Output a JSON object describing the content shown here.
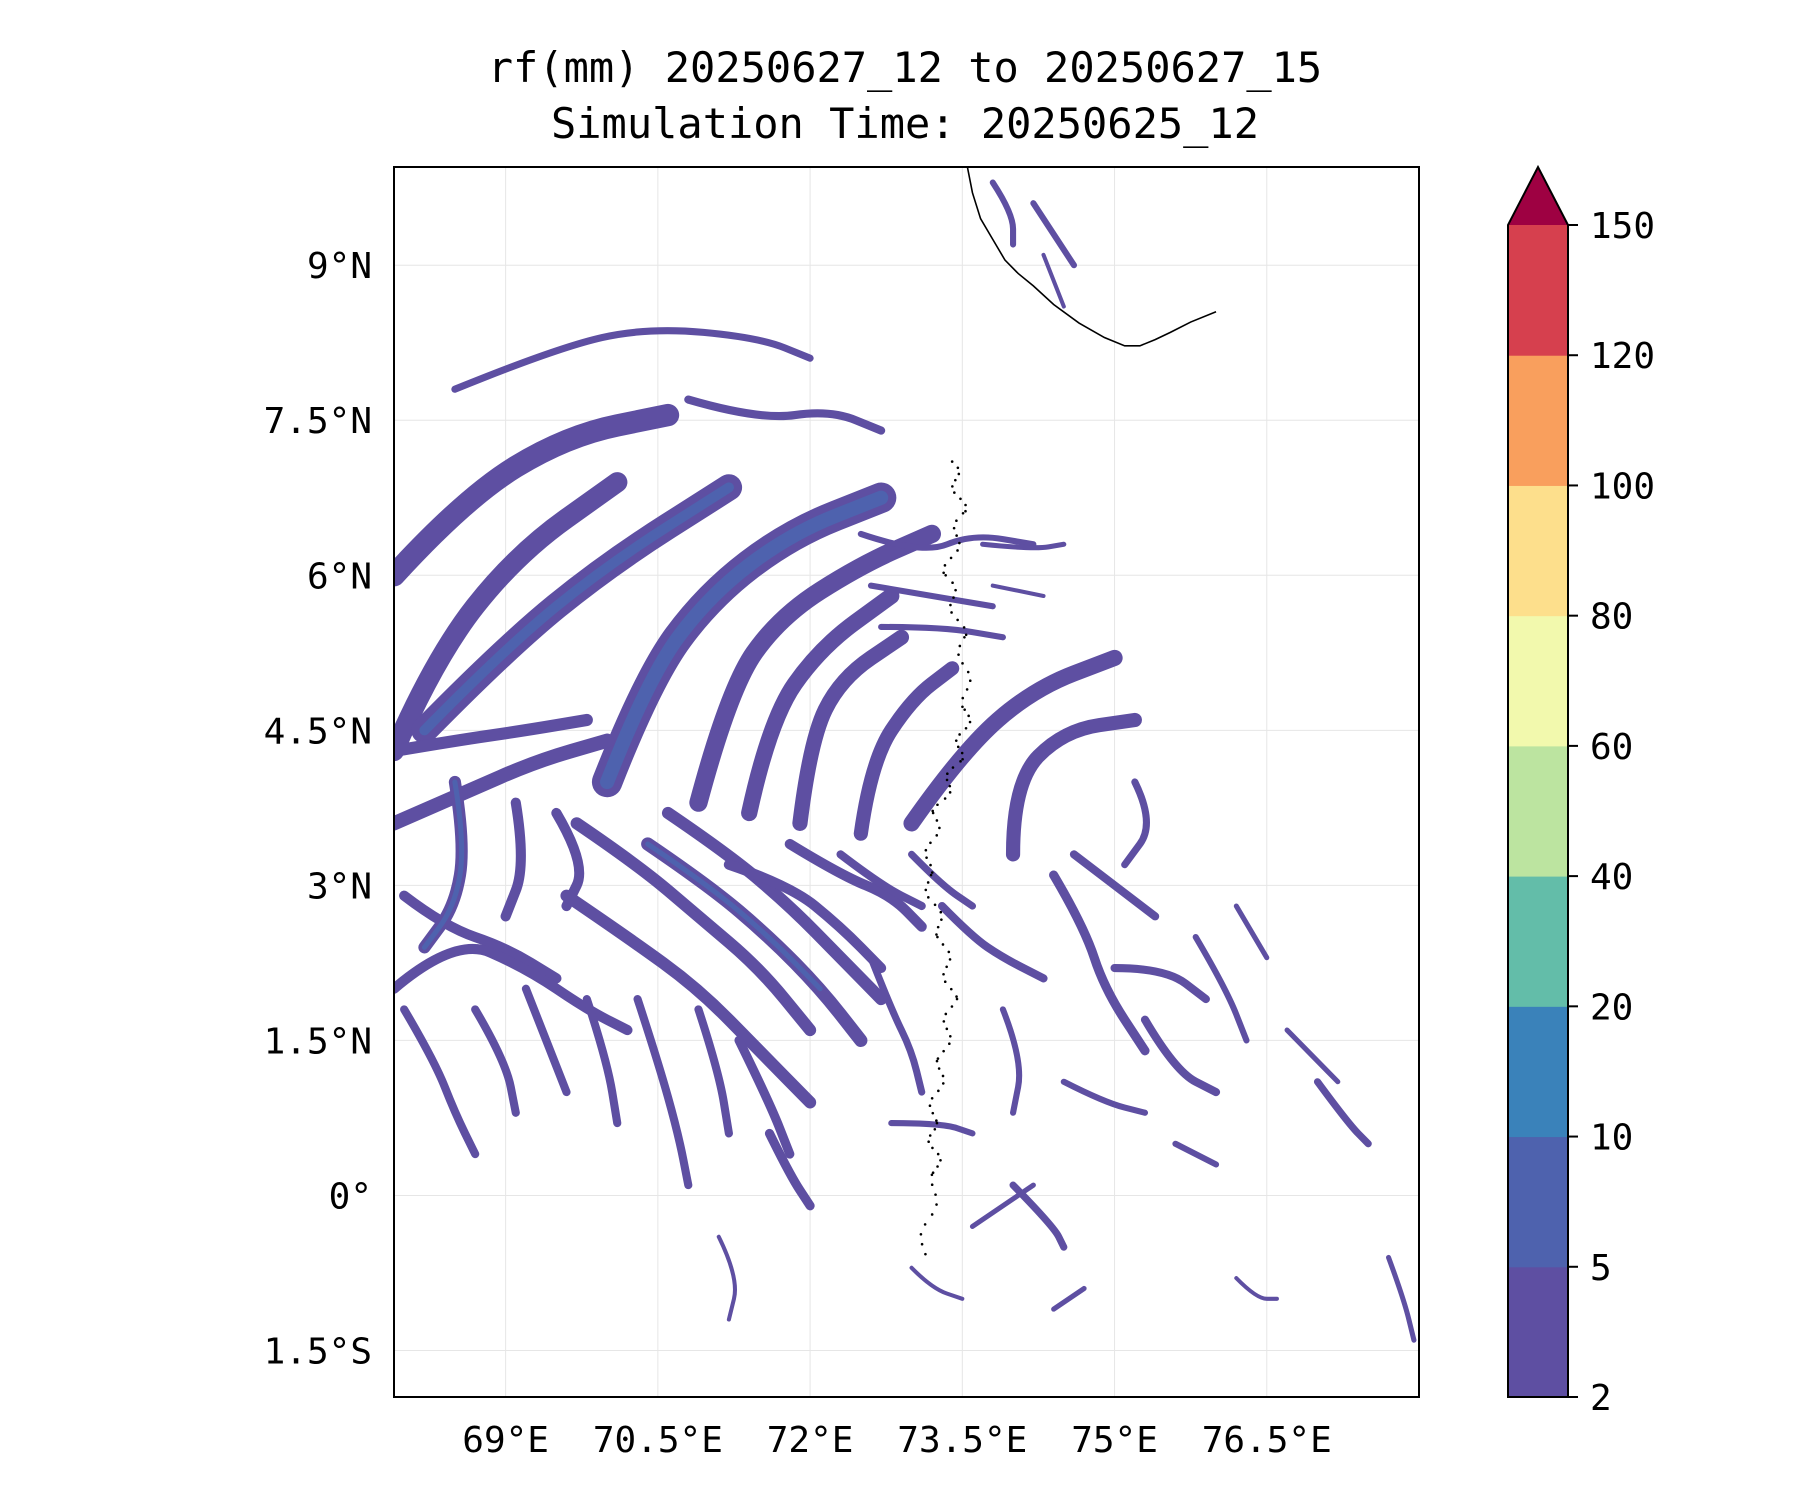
{
  "title": {
    "line1": "rf(mm) 20250627_12 to 20250627_15",
    "line2": "Simulation Time: 20250625_12"
  },
  "map": {
    "lon_range": [
      67.9,
      78.0
    ],
    "lat_range": [
      -1.95,
      9.95
    ],
    "x_ticks": [
      {
        "lon": 69.0,
        "label": "69°E"
      },
      {
        "lon": 70.5,
        "label": "70.5°E"
      },
      {
        "lon": 72.0,
        "label": "72°E"
      },
      {
        "lon": 73.5,
        "label": "73.5°E"
      },
      {
        "lon": 75.0,
        "label": "75°E"
      },
      {
        "lon": 76.5,
        "label": "76.5°E"
      }
    ],
    "y_ticks": [
      {
        "lat": 9.0,
        "label": "9°N"
      },
      {
        "lat": 7.5,
        "label": "7.5°N"
      },
      {
        "lat": 6.0,
        "label": "6°N"
      },
      {
        "lat": 4.5,
        "label": "4.5°N"
      },
      {
        "lat": 3.0,
        "label": "3°N"
      },
      {
        "lat": 1.5,
        "label": "1.5°N"
      },
      {
        "lat": 0.0,
        "label": "0°"
      },
      {
        "lat": -1.5,
        "label": "1.5°S"
      }
    ],
    "grid": true,
    "coastline": [
      [
        73.55,
        9.95
      ],
      [
        73.6,
        9.7
      ],
      [
        73.68,
        9.45
      ],
      [
        73.8,
        9.25
      ],
      [
        73.92,
        9.05
      ],
      [
        74.05,
        8.92
      ],
      [
        74.2,
        8.8
      ],
      [
        74.4,
        8.62
      ],
      [
        74.65,
        8.44
      ],
      [
        74.9,
        8.3
      ],
      [
        75.1,
        8.22
      ],
      [
        75.25,
        8.22
      ],
      [
        75.4,
        8.28
      ],
      [
        75.55,
        8.35
      ],
      [
        75.75,
        8.45
      ],
      [
        76.0,
        8.55
      ]
    ],
    "rain_field": [
      {
        "lons": [
          67.9,
          68.6,
          69.6,
          70.6
        ],
        "lats": [
          6.0,
          6.75,
          7.35,
          7.55
        ],
        "level": 0,
        "width": 0.22
      },
      {
        "lons": [
          67.9,
          68.3,
          69.1,
          70.1
        ],
        "lats": [
          4.3,
          5.2,
          6.2,
          6.9
        ],
        "level": 0,
        "width": 0.2
      },
      {
        "lons": [
          68.2,
          69.0,
          70.0,
          71.2
        ],
        "lats": [
          4.5,
          5.3,
          6.1,
          6.85
        ],
        "level": 0,
        "width": 0.26
      },
      {
        "lons": [
          68.2,
          69.0,
          70.0,
          71.2
        ],
        "lats": [
          4.5,
          5.3,
          6.1,
          6.85
        ],
        "level": 1,
        "width": 0.1
      },
      {
        "lons": [
          70.0,
          70.4,
          71.0,
          71.8,
          72.7
        ],
        "lats": [
          4.0,
          5.0,
          5.8,
          6.4,
          6.75
        ],
        "level": 0,
        "width": 0.3
      },
      {
        "lons": [
          70.0,
          70.4,
          71.0,
          71.8,
          72.7
        ],
        "lats": [
          4.0,
          5.0,
          5.8,
          6.4,
          6.75
        ],
        "level": 1,
        "width": 0.14
      },
      {
        "lons": [
          70.9,
          71.2,
          71.7,
          72.5,
          73.2
        ],
        "lats": [
          3.8,
          4.9,
          5.6,
          6.1,
          6.4
        ],
        "level": 0,
        "width": 0.18
      },
      {
        "lons": [
          71.4,
          71.6,
          72.1,
          72.8
        ],
        "lats": [
          3.7,
          4.6,
          5.3,
          5.8
        ],
        "level": 0,
        "width": 0.16
      },
      {
        "lons": [
          71.9,
          72.0,
          72.3,
          72.9
        ],
        "lats": [
          3.6,
          4.4,
          5.0,
          5.4
        ],
        "level": 0,
        "width": 0.15
      },
      {
        "lons": [
          72.5,
          72.6,
          73.0,
          73.4
        ],
        "lats": [
          3.5,
          4.2,
          4.8,
          5.1
        ],
        "level": 0,
        "width": 0.14
      },
      {
        "lons": [
          73.0,
          73.5,
          74.2,
          75.0
        ],
        "lats": [
          3.6,
          4.3,
          4.9,
          5.2
        ],
        "level": 0,
        "width": 0.16
      },
      {
        "lons": [
          74.0,
          74.0,
          74.5,
          75.2
        ],
        "lats": [
          3.3,
          4.0,
          4.5,
          4.6
        ],
        "level": 0,
        "width": 0.14
      },
      {
        "lons": [
          68.5,
          69.5,
          70.4,
          71.5,
          72.0
        ],
        "lats": [
          7.8,
          8.2,
          8.4,
          8.3,
          8.1
        ],
        "level": 0,
        "width": 0.07
      },
      {
        "lons": [
          70.8,
          71.5,
          72.2,
          72.7
        ],
        "lats": [
          7.7,
          7.5,
          7.6,
          7.4
        ],
        "level": 0,
        "width": 0.08
      },
      {
        "lons": [
          72.5,
          73.1,
          73.6,
          74.2
        ],
        "lats": [
          6.4,
          6.2,
          6.4,
          6.3
        ],
        "level": 0,
        "width": 0.06
      },
      {
        "lons": [
          72.6,
          73.2,
          73.8
        ],
        "lats": [
          5.9,
          5.8,
          5.7
        ],
        "level": 0,
        "width": 0.06
      },
      {
        "lons": [
          72.7,
          73.3,
          73.9
        ],
        "lats": [
          5.5,
          5.5,
          5.4
        ],
        "level": 0,
        "width": 0.06
      },
      {
        "lons": [
          73.7,
          74.2,
          74.5
        ],
        "lats": [
          6.3,
          6.25,
          6.3
        ],
        "level": 0,
        "width": 0.05
      },
      {
        "lons": [
          73.8,
          74.3
        ],
        "lats": [
          5.9,
          5.8
        ],
        "level": 0,
        "width": 0.04
      },
      {
        "lons": [
          67.9,
          68.5,
          69.2,
          69.8
        ],
        "lats": [
          4.3,
          4.4,
          4.5,
          4.6
        ],
        "level": 0,
        "width": 0.12
      },
      {
        "lons": [
          67.9,
          68.6,
          69.3,
          70.0
        ],
        "lats": [
          3.6,
          3.9,
          4.2,
          4.4
        ],
        "level": 0,
        "width": 0.14
      },
      {
        "lons": [
          68.5,
          68.6,
          68.5,
          68.2
        ],
        "lats": [
          4.0,
          3.4,
          2.8,
          2.4
        ],
        "level": 0,
        "width": 0.12
      },
      {
        "lons": [
          68.5,
          68.6,
          68.5,
          68.2
        ],
        "lats": [
          4.0,
          3.4,
          2.8,
          2.4
        ],
        "level": 1,
        "width": 0.05
      },
      {
        "lons": [
          69.1,
          69.2,
          69.0
        ],
        "lats": [
          3.8,
          3.2,
          2.7
        ],
        "level": 0,
        "width": 0.1
      },
      {
        "lons": [
          69.5,
          69.8,
          69.6
        ],
        "lats": [
          3.7,
          3.2,
          2.8
        ],
        "level": 0,
        "width": 0.1
      },
      {
        "lons": [
          68.0,
          68.4,
          69.0,
          69.5
        ],
        "lats": [
          2.9,
          2.6,
          2.4,
          2.1
        ],
        "level": 0,
        "width": 0.1
      },
      {
        "lons": [
          67.9,
          68.5,
          69.2,
          69.8,
          70.2
        ],
        "lats": [
          2.0,
          2.5,
          2.2,
          1.8,
          1.6
        ],
        "level": 0,
        "width": 0.1
      },
      {
        "lons": [
          69.6,
          70.2,
          70.9,
          71.5,
          72.0
        ],
        "lats": [
          2.9,
          2.5,
          2.0,
          1.4,
          0.9
        ],
        "level": 0,
        "width": 0.12
      },
      {
        "lons": [
          69.7,
          70.3,
          70.9,
          71.5,
          72.0
        ],
        "lats": [
          3.6,
          3.2,
          2.7,
          2.2,
          1.6
        ],
        "level": 0,
        "width": 0.12
      },
      {
        "lons": [
          70.4,
          71.0,
          71.6,
          72.1,
          72.5
        ],
        "lats": [
          3.4,
          3.0,
          2.5,
          2.0,
          1.5
        ],
        "level": 0,
        "width": 0.13
      },
      {
        "lons": [
          70.4,
          71.0,
          71.6,
          72.1
        ],
        "lats": [
          3.4,
          3.0,
          2.5,
          2.0
        ],
        "level": 1,
        "width": 0.05
      },
      {
        "lons": [
          70.6,
          71.2,
          71.8,
          72.3,
          72.7
        ],
        "lats": [
          3.7,
          3.3,
          2.8,
          2.3,
          1.9
        ],
        "level": 0,
        "width": 0.12
      },
      {
        "lons": [
          71.2,
          71.8,
          72.3,
          72.7
        ],
        "lats": [
          3.2,
          3.0,
          2.6,
          2.2
        ],
        "level": 0,
        "width": 0.1
      },
      {
        "lons": [
          71.8,
          72.3,
          72.8,
          73.1
        ],
        "lats": [
          3.4,
          3.1,
          2.9,
          2.6
        ],
        "level": 0,
        "width": 0.1
      },
      {
        "lons": [
          72.3,
          72.7,
          73.1
        ],
        "lats": [
          3.3,
          3.0,
          2.8
        ],
        "level": 0,
        "width": 0.08
      },
      {
        "lons": [
          73.0,
          73.3,
          73.6
        ],
        "lats": [
          3.3,
          3.0,
          2.8
        ],
        "level": 0,
        "width": 0.07
      },
      {
        "lons": [
          68.0,
          68.3,
          68.5,
          68.7
        ],
        "lats": [
          1.8,
          1.3,
          0.8,
          0.4
        ],
        "level": 0,
        "width": 0.08
      },
      {
        "lons": [
          68.7,
          69.0,
          69.1
        ],
        "lats": [
          1.8,
          1.3,
          0.8
        ],
        "level": 0,
        "width": 0.08
      },
      {
        "lons": [
          69.2,
          69.4,
          69.6
        ],
        "lats": [
          2.0,
          1.5,
          1.0
        ],
        "level": 0,
        "width": 0.08
      },
      {
        "lons": [
          69.8,
          70.0,
          70.1
        ],
        "lats": [
          1.9,
          1.3,
          0.7
        ],
        "level": 0,
        "width": 0.08
      },
      {
        "lons": [
          70.3,
          70.5,
          70.7,
          70.8
        ],
        "lats": [
          1.9,
          1.3,
          0.6,
          0.1
        ],
        "level": 0,
        "width": 0.08
      },
      {
        "lons": [
          70.9,
          71.1,
          71.2
        ],
        "lats": [
          1.8,
          1.2,
          0.6
        ],
        "level": 0,
        "width": 0.08
      },
      {
        "lons": [
          71.3,
          71.6,
          71.8
        ],
        "lats": [
          1.5,
          0.9,
          0.4
        ],
        "level": 0,
        "width": 0.09
      },
      {
        "lons": [
          71.6,
          71.8,
          72.0
        ],
        "lats": [
          0.6,
          0.2,
          -0.1
        ],
        "level": 0,
        "width": 0.09
      },
      {
        "lons": [
          72.6,
          72.8,
          73.0,
          73.1
        ],
        "lats": [
          2.3,
          1.8,
          1.4,
          1.0
        ],
        "level": 0,
        "width": 0.07
      },
      {
        "lons": [
          72.8,
          73.3,
          73.6
        ],
        "lats": [
          0.7,
          0.7,
          0.6
        ],
        "level": 0,
        "width": 0.06
      },
      {
        "lons": [
          73.3,
          73.6,
          73.9,
          74.3
        ],
        "lats": [
          2.8,
          2.5,
          2.3,
          2.1
        ],
        "level": 0,
        "width": 0.08
      },
      {
        "lons": [
          73.9,
          74.1,
          74.0
        ],
        "lats": [
          1.8,
          1.3,
          0.8
        ],
        "level": 0,
        "width": 0.06
      },
      {
        "lons": [
          74.4,
          74.7,
          74.9,
          75.3
        ],
        "lats": [
          3.1,
          2.6,
          2.0,
          1.4
        ],
        "level": 0,
        "width": 0.09
      },
      {
        "lons": [
          74.6,
          75.0,
          75.4
        ],
        "lats": [
          3.3,
          3.0,
          2.7
        ],
        "level": 0,
        "width": 0.08
      },
      {
        "lons": [
          75.0,
          75.5,
          75.9
        ],
        "lats": [
          2.2,
          2.2,
          1.9
        ],
        "level": 0,
        "width": 0.08
      },
      {
        "lons": [
          75.3,
          75.6,
          76.0
        ],
        "lats": [
          1.7,
          1.2,
          1.0
        ],
        "level": 0,
        "width": 0.08
      },
      {
        "lons": [
          75.2,
          75.4,
          75.1
        ],
        "lats": [
          4.0,
          3.6,
          3.2
        ],
        "level": 0,
        "width": 0.07
      },
      {
        "lons": [
          75.8,
          76.1,
          76.3
        ],
        "lats": [
          2.5,
          2.0,
          1.5
        ],
        "level": 0,
        "width": 0.06
      },
      {
        "lons": [
          74.5,
          74.9,
          75.3
        ],
        "lats": [
          1.1,
          0.9,
          0.8
        ],
        "level": 0,
        "width": 0.06
      },
      {
        "lons": [
          75.6,
          76.0
        ],
        "lats": [
          0.5,
          0.3
        ],
        "level": 0,
        "width": 0.06
      },
      {
        "lons": [
          74.0,
          74.4,
          74.5
        ],
        "lats": [
          0.1,
          -0.3,
          -0.5
        ],
        "level": 0,
        "width": 0.07
      },
      {
        "lons": [
          77.0,
          77.3,
          77.5
        ],
        "lats": [
          1.1,
          0.7,
          0.5
        ],
        "level": 0,
        "width": 0.07
      },
      {
        "lons": [
          73.0,
          73.2,
          73.5
        ],
        "lats": [
          -0.7,
          -0.9,
          -1.0
        ],
        "level": 0,
        "width": 0.04
      },
      {
        "lons": [
          76.2,
          76.4,
          76.6
        ],
        "lats": [
          -0.8,
          -1.0,
          -1.0
        ],
        "level": 0,
        "width": 0.04
      },
      {
        "lons": [
          77.7,
          77.85,
          77.95
        ],
        "lats": [
          -0.6,
          -1.0,
          -1.4
        ],
        "level": 0,
        "width": 0.05
      },
      {
        "lons": [
          74.4,
          74.7
        ],
        "lats": [
          -1.1,
          -0.9
        ],
        "level": 0,
        "width": 0.05
      },
      {
        "lons": [
          71.1,
          71.3,
          71.2
        ],
        "lats": [
          -0.4,
          -0.8,
          -1.2
        ],
        "level": 0,
        "width": 0.04
      },
      {
        "lons": [
          73.8,
          74.0,
          74.0
        ],
        "lats": [
          9.8,
          9.5,
          9.2
        ],
        "level": 0,
        "width": 0.06
      },
      {
        "lons": [
          74.2,
          74.4,
          74.6
        ],
        "lats": [
          9.6,
          9.3,
          9.0
        ],
        "level": 0,
        "width": 0.06
      },
      {
        "lons": [
          74.3,
          74.5
        ],
        "lats": [
          9.1,
          8.6
        ],
        "level": 0,
        "width": 0.04
      },
      {
        "lons": [
          76.7,
          77.0,
          77.2
        ],
        "lats": [
          1.6,
          1.3,
          1.1
        ],
        "level": 0,
        "width": 0.05
      },
      {
        "lons": [
          76.2,
          76.5
        ],
        "lats": [
          2.8,
          2.3
        ],
        "level": 0,
        "width": 0.05
      },
      {
        "lons": [
          73.6,
          73.9,
          74.2
        ],
        "lats": [
          -0.3,
          -0.1,
          0.1
        ],
        "level": 0,
        "width": 0.05
      }
    ]
  },
  "colorbar": {
    "levels": [
      "2",
      "5",
      "10",
      "20",
      "40",
      "60",
      "80",
      "100",
      "120",
      "150"
    ],
    "colors": [
      "#5e4fa2",
      "#4e62ae",
      "#3a82ba",
      "#63bda9",
      "#bce4a0",
      "#f2f9ad",
      "#fddf8c",
      "#f99f5d",
      "#d6404e"
    ],
    "extend_color": "#9e0142"
  },
  "colors": {
    "coastline": "#000000",
    "islands": "#000000",
    "grid": "#e6e6e6"
  }
}
